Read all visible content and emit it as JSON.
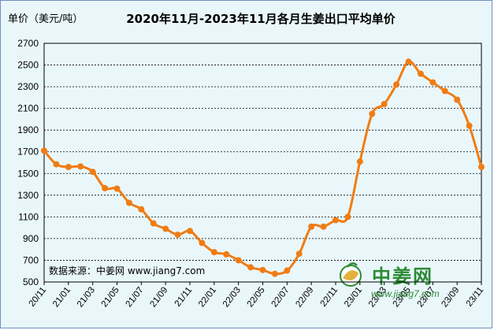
{
  "chart_data": {
    "type": "line",
    "title": "2020年11月-2023年11月各月生姜出口平均单价",
    "ylabel": "单价（美元/吨）",
    "xlabel": "",
    "ylim": [
      500,
      2700
    ],
    "yticks": [
      500,
      700,
      900,
      1100,
      1300,
      1500,
      1700,
      1900,
      2100,
      2300,
      2500,
      2700
    ],
    "grid": true,
    "legend": "none",
    "x": [
      "20/11",
      "20/12",
      "21/01",
      "21/02",
      "21/03",
      "21/04",
      "21/05",
      "21/06",
      "21/07",
      "21/08",
      "21/09",
      "21/10",
      "21/11",
      "21/12",
      "22/01",
      "22/02",
      "22/03",
      "22/04",
      "22/05",
      "22/06",
      "22/07",
      "22/08",
      "22/09",
      "22/10",
      "22/11",
      "22/12",
      "23/01",
      "23/02",
      "23/03",
      "23/04",
      "23/05",
      "23/06",
      "23/07",
      "23/08",
      "23/09",
      "23/10",
      "23/11"
    ],
    "xtick_labels": [
      "20/11",
      "21/01",
      "21/03",
      "21/05",
      "21/07",
      "21/09",
      "21/11",
      "22/01",
      "22/03",
      "22/05",
      "22/07",
      "22/09",
      "22/11",
      "23/01",
      "23/03",
      "23/05",
      "23/07",
      "23/09",
      "23/11"
    ],
    "series": [
      {
        "values": [
          1710,
          1585,
          1560,
          1565,
          1515,
          1365,
          1360,
          1230,
          1170,
          1040,
          990,
          935,
          970,
          860,
          775,
          755,
          700,
          635,
          610,
          575,
          605,
          760,
          1010,
          1010,
          1070,
          1100,
          1610,
          2050,
          2140,
          2320,
          2530,
          2420,
          2340,
          2260,
          2180,
          1940,
          1560
        ],
        "color": "#f07c13"
      }
    ]
  },
  "annotation": "数据来源：中姜网 www.jiang7.com",
  "logo": {
    "brand": "中姜网",
    "mark": "姜",
    "url": "www.jiang7.com"
  }
}
